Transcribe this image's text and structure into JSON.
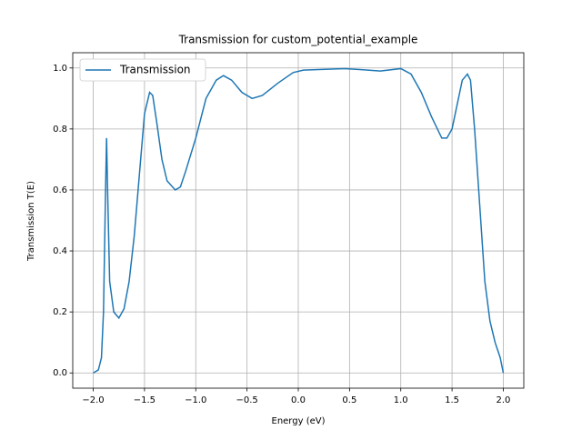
{
  "chart_data": {
    "type": "line",
    "title": "Transmission for custom_potential_example",
    "xlabel": "Energy (eV)",
    "ylabel": "Transmission T(E)",
    "x": [
      -2.0,
      -1.95,
      -1.92,
      -1.9,
      -1.88,
      -1.87,
      -1.86,
      -1.84,
      -1.8,
      -1.75,
      -1.7,
      -1.65,
      -1.6,
      -1.55,
      -1.5,
      -1.45,
      -1.42,
      -1.38,
      -1.33,
      -1.28,
      -1.2,
      -1.15,
      -1.1,
      -1.0,
      -0.9,
      -0.8,
      -0.73,
      -0.65,
      -0.55,
      -0.45,
      -0.35,
      -0.2,
      -0.05,
      0.05,
      0.2,
      0.45,
      0.6,
      0.8,
      1.0,
      1.1,
      1.2,
      1.3,
      1.4,
      1.45,
      1.5,
      1.55,
      1.6,
      1.65,
      1.68,
      1.72,
      1.77,
      1.82,
      1.87,
      1.92,
      1.97,
      2.0
    ],
    "series": [
      {
        "name": "Transmission",
        "color": "#1f77b4",
        "values": [
          0,
          0.01,
          0.05,
          0.2,
          0.6,
          0.77,
          0.6,
          0.3,
          0.2,
          0.18,
          0.21,
          0.3,
          0.45,
          0.65,
          0.85,
          0.92,
          0.91,
          0.82,
          0.7,
          0.63,
          0.6,
          0.61,
          0.66,
          0.77,
          0.9,
          0.96,
          0.975,
          0.96,
          0.92,
          0.9,
          0.91,
          0.95,
          0.985,
          0.993,
          0.995,
          0.998,
          0.995,
          0.99,
          0.998,
          0.98,
          0.92,
          0.84,
          0.77,
          0.77,
          0.8,
          0.88,
          0.96,
          0.98,
          0.96,
          0.8,
          0.55,
          0.3,
          0.17,
          0.1,
          0.05,
          0
        ]
      }
    ],
    "xlim": [
      -2.2,
      2.2
    ],
    "ylim": [
      -0.05,
      1.05
    ],
    "xticks": [
      {
        "value": -2.0,
        "label": "−2.0"
      },
      {
        "value": -1.5,
        "label": "−1.5"
      },
      {
        "value": -1.0,
        "label": "−1.0"
      },
      {
        "value": -0.5,
        "label": "−0.5"
      },
      {
        "value": 0,
        "label": "0.0"
      },
      0.5,
      {
        "value": 1,
        "label": "1.0"
      },
      1.5,
      {
        "value": 2,
        "label": "2.0"
      }
    ],
    "yticks": [
      {
        "value": 0,
        "label": "0.0"
      },
      0.2,
      0.4,
      0.6,
      0.8,
      {
        "value": 1,
        "label": "1.0"
      }
    ],
    "grid": true,
    "legend": "upper left"
  }
}
